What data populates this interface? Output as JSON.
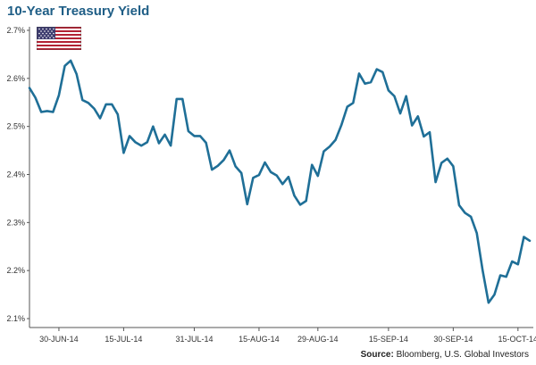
{
  "header": {
    "title": "10-Year Treasury Yield"
  },
  "footer": {
    "source_label": "Source:",
    "source_text": "Bloomberg, U.S. Global Investors"
  },
  "flag": {
    "icon": "us-flag-icon"
  },
  "colors": {
    "line": "#1f6f97",
    "axis": "#555555",
    "title": "#1f5e86"
  },
  "chart_data": {
    "type": "line",
    "title": "10-Year Treasury Yield",
    "xlabel": "",
    "ylabel": "",
    "ylim": [
      2.1,
      2.7
    ],
    "y_ticks": [
      2.1,
      2.2,
      2.3,
      2.4,
      2.5,
      2.6,
      2.7
    ],
    "y_tick_labels": [
      "2.1%",
      "2.2%",
      "2.3%",
      "2.4%",
      "2.5%",
      "2.6%",
      "2.7%"
    ],
    "x_tick_labels": [
      "30-JUN-14",
      "15-JUL-14",
      "31-JUL-14",
      "15-AUG-14",
      "29-AUG-14",
      "15-SEP-14",
      "30-SEP-14",
      "15-OCT-14"
    ],
    "x_tick_index": [
      5,
      16,
      28,
      39,
      49,
      61,
      72,
      83
    ],
    "grid": false,
    "series": [
      {
        "values": [
          2.58,
          2.56,
          2.53,
          2.532,
          2.53,
          2.565,
          2.626,
          2.637,
          2.609,
          2.555,
          2.549,
          2.537,
          2.517,
          2.546,
          2.546,
          2.525,
          2.445,
          2.48,
          2.467,
          2.46,
          2.467,
          2.5,
          2.465,
          2.483,
          2.46,
          2.557,
          2.557,
          2.49,
          2.48,
          2.48,
          2.466,
          2.41,
          2.418,
          2.43,
          2.45,
          2.417,
          2.403,
          2.338,
          2.393,
          2.399,
          2.425,
          2.405,
          2.398,
          2.38,
          2.395,
          2.356,
          2.337,
          2.345,
          2.42,
          2.397,
          2.448,
          2.458,
          2.472,
          2.503,
          2.541,
          2.549,
          2.61,
          2.589,
          2.592,
          2.619,
          2.613,
          2.575,
          2.563,
          2.527,
          2.563,
          2.502,
          2.521,
          2.479,
          2.488,
          2.384,
          2.424,
          2.433,
          2.417,
          2.336,
          2.32,
          2.312,
          2.278,
          2.2,
          2.133,
          2.15,
          2.19,
          2.187,
          2.219,
          2.213,
          2.27,
          2.262
        ]
      }
    ]
  }
}
